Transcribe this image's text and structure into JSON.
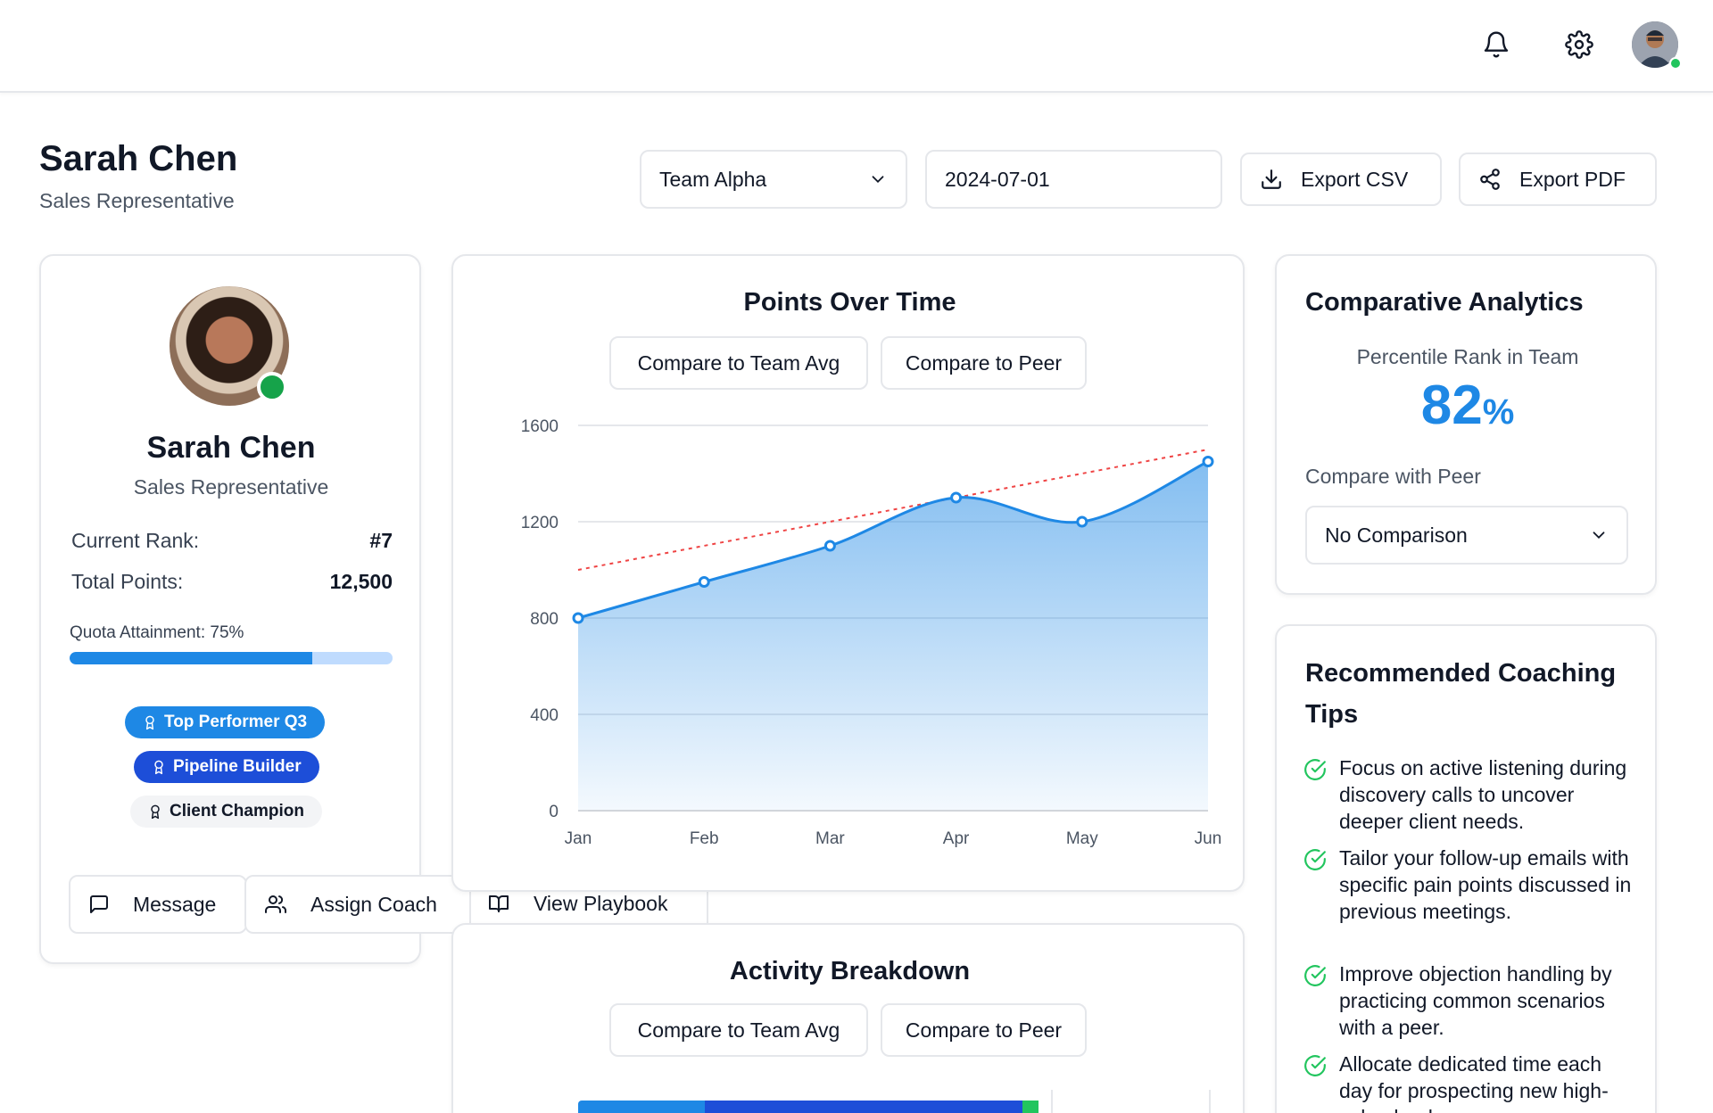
{
  "header": {
    "user_name": "Sarah Chen",
    "user_role": "Sales Representative"
  },
  "controls": {
    "team_select": "Team Alpha",
    "date_value": "2024-07-01",
    "export_csv": "Export CSV",
    "export_pdf": "Export PDF"
  },
  "profile": {
    "name": "Sarah Chen",
    "role": "Sales Representative",
    "rank_label": "Current Rank:",
    "rank_value": "#7",
    "points_label": "Total Points:",
    "points_value": "12,500",
    "quota_label": "Quota Attainment: 75%",
    "quota_fraction": 0.75,
    "badges": [
      "Top Performer Q3",
      "Pipeline Builder",
      "Client Champion"
    ],
    "actions": [
      "Message",
      "Assign Coach",
      "View Playbook"
    ]
  },
  "points_chart": {
    "title": "Points Over Time",
    "compare_team": "Compare to Team Avg",
    "compare_peer": "Compare to Peer"
  },
  "activity": {
    "title": "Activity Breakdown",
    "compare_team": "Compare to Team Avg",
    "compare_peer": "Compare to Peer"
  },
  "comparative": {
    "title": "Comparative Analytics",
    "percentile_label": "Percentile Rank in Team",
    "percentile_value": "82",
    "percentile_unit": "%",
    "peer_label": "Compare with Peer",
    "peer_select": "No Comparison"
  },
  "coaching": {
    "title_line1": "Recommended Coaching",
    "title_line2": "Tips",
    "tips": [
      "Focus on active listening during discovery calls to uncover deeper client needs.",
      "Tailor your follow-up emails with specific pain points discussed in previous meetings.",
      "Improve objection handling by practicing common scenarios with a peer.",
      "Allocate dedicated time each day for prospecting new high-value leads."
    ]
  },
  "colors": {
    "accent": "#1e88e5",
    "badge_primary": "#1e88e5",
    "badge_dark": "#1d4ed8",
    "badge_muted": "#f3f4f6",
    "online": "#22c55e",
    "trend": "#ef4444",
    "check": "#22c55e"
  },
  "icons": {
    "notifications": "bell-icon",
    "settings": "gear-icon",
    "export_csv": "download-icon",
    "export_pdf": "share-icon",
    "message": "chat-icon",
    "assign_coach": "users-icon",
    "playbook": "book-icon",
    "badge": "award-icon",
    "tip": "check-circle-icon",
    "dropdown": "chevron-down-icon"
  },
  "chart_data": {
    "type": "area",
    "categories": [
      "Jan",
      "Feb",
      "Mar",
      "Apr",
      "May",
      "Jun"
    ],
    "series": [
      {
        "values": [
          800,
          950,
          1100,
          1300,
          1200,
          1450
        ]
      }
    ],
    "trendline": {
      "start": 1000,
      "end": 1500
    },
    "yticks": [
      0,
      400,
      800,
      1200,
      1600
    ],
    "ylim": [
      0,
      1600
    ],
    "grid": true
  }
}
